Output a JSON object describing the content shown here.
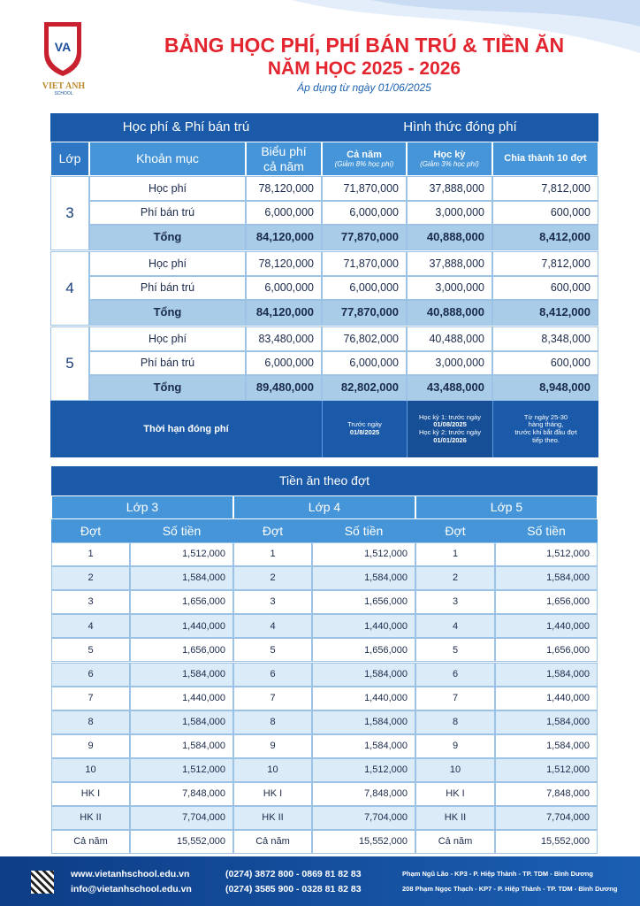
{
  "header": {
    "logo_text": "VIET ANH",
    "logo_sub": "SCHOOL",
    "title": "BẢNG HỌC PHÍ, PHÍ BÁN TRÚ & TIỀN ĂN",
    "subtitle": "NĂM HỌC 2025 - 2026",
    "note": "Áp dụng từ ngày 01/06/2025"
  },
  "fee_table": {
    "group_headers": [
      "Học phí & Phí bán trú",
      "Hình thức đóng phí"
    ],
    "columns": [
      [
        "Lớp"
      ],
      [
        "Khoản mục"
      ],
      [
        "Biểu phí",
        "cả năm"
      ],
      [
        "Cả năm",
        "(Giảm 8% học phí)"
      ],
      [
        "Học kỳ",
        "(Giảm 3% học phí)"
      ],
      [
        "Chia thành 10 đợt"
      ]
    ],
    "groups": [
      {
        "grade": "3",
        "rows": [
          [
            "Học phí",
            "78,120,000",
            "71,870,000",
            "37,888,000",
            "7,812,000"
          ],
          [
            "Phí bán trú",
            "6,000,000",
            "6,000,000",
            "3,000,000",
            "600,000"
          ],
          [
            "Tổng",
            "84,120,000",
            "77,870,000",
            "40,888,000",
            "8,412,000"
          ]
        ]
      },
      {
        "grade": "4",
        "rows": [
          [
            "Học phí",
            "78,120,000",
            "71,870,000",
            "37,888,000",
            "7,812,000"
          ],
          [
            "Phí bán trú",
            "6,000,000",
            "6,000,000",
            "3,000,000",
            "600,000"
          ],
          [
            "Tổng",
            "84,120,000",
            "77,870,000",
            "40,888,000",
            "8,412,000"
          ]
        ]
      },
      {
        "grade": "5",
        "rows": [
          [
            "Học phí",
            "83,480,000",
            "76,802,000",
            "40,488,000",
            "8,348,000"
          ],
          [
            "Phí bán trú",
            "6,000,000",
            "6,000,000",
            "3,000,000",
            "600,000"
          ],
          [
            "Tổng",
            "89,480,000",
            "82,802,000",
            "43,488,000",
            "8,948,000"
          ]
        ]
      }
    ],
    "deadline": {
      "label": "Thời hạn đóng phí",
      "cells": [
        [
          "Trước ngày",
          "01/8/2025"
        ],
        [
          "Học kỳ 1: trước ngày",
          "01/08/2025",
          "Học kỳ 2: trước ngày",
          "01/01/2026"
        ],
        [
          "Từ ngày 25-30",
          "hàng tháng,",
          "trước khi bắt đầu đợt",
          "tiếp theo."
        ]
      ]
    }
  },
  "meal_table": {
    "title": "Tiền ăn theo đợt",
    "col_headers": [
      "Đợt",
      "Số tiền"
    ],
    "classes": [
      {
        "name": "Lớp 3",
        "rows": [
          [
            "1",
            "1,512,000"
          ],
          [
            "2",
            "1,584,000"
          ],
          [
            "3",
            "1,656,000"
          ],
          [
            "4",
            "1,440,000"
          ],
          [
            "5",
            "1,656,000"
          ],
          [
            "6",
            "1,584,000"
          ],
          [
            "7",
            "1,440,000"
          ],
          [
            "8",
            "1,584,000"
          ],
          [
            "9",
            "1,584,000"
          ],
          [
            "10",
            "1,512,000"
          ],
          [
            "HK I",
            "7,848,000"
          ],
          [
            "HK II",
            "7,704,000"
          ],
          [
            "Cả năm",
            "15,552,000"
          ]
        ]
      },
      {
        "name": "Lớp 4",
        "rows": [
          [
            "1",
            "1,512,000"
          ],
          [
            "2",
            "1,584,000"
          ],
          [
            "3",
            "1,656,000"
          ],
          [
            "4",
            "1,440,000"
          ],
          [
            "5",
            "1,656,000"
          ],
          [
            "6",
            "1,584,000"
          ],
          [
            "7",
            "1,440,000"
          ],
          [
            "8",
            "1,584,000"
          ],
          [
            "9",
            "1,584,000"
          ],
          [
            "10",
            "1,512,000"
          ],
          [
            "HK I",
            "7,848,000"
          ],
          [
            "HK II",
            "7,704,000"
          ],
          [
            "Cả năm",
            "15,552,000"
          ]
        ]
      },
      {
        "name": "Lớp 5",
        "rows": [
          [
            "1",
            "1,512,000"
          ],
          [
            "2",
            "1,584,000"
          ],
          [
            "3",
            "1,656,000"
          ],
          [
            "4",
            "1,440,000"
          ],
          [
            "5",
            "1,656,000"
          ],
          [
            "6",
            "1,584,000"
          ],
          [
            "7",
            "1,440,000"
          ],
          [
            "8",
            "1,584,000"
          ],
          [
            "9",
            "1,584,000"
          ],
          [
            "10",
            "1,512,000"
          ],
          [
            "HK I",
            "7,848,000"
          ],
          [
            "HK II",
            "7,704,000"
          ],
          [
            "Cả năm",
            "15,552,000"
          ]
        ]
      }
    ]
  },
  "footer": {
    "web": "www.vietanhschool.edu.vn",
    "email": "info@vietanhschool.edu.vn",
    "phone1": "(0274) 3872 800 - 0869 81 82 83",
    "phone2": "(0274) 3585 900 - 0328 81 82 83",
    "address1": "Phạm Ngũ Lão - KP3 - P. Hiệp Thành - TP. TDM - Bình Dương",
    "address2": "208 Phạm Ngọc Thạch - KP7 - P. Hiệp Thành - TP. TDM - Bình Dương"
  }
}
